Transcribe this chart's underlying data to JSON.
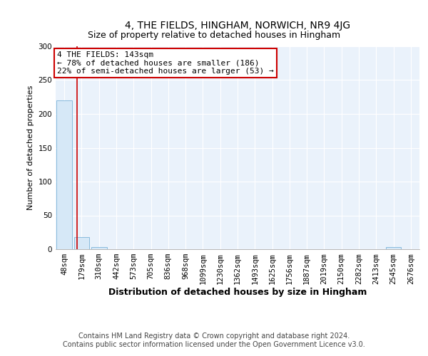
{
  "title": "4, THE FIELDS, HINGHAM, NORWICH, NR9 4JG",
  "subtitle": "Size of property relative to detached houses in Hingham",
  "xlabel": "Distribution of detached houses by size in Hingham",
  "ylabel": "Number of detached properties",
  "bar_labels": [
    "48sqm",
    "179sqm",
    "310sqm",
    "442sqm",
    "573sqm",
    "705sqm",
    "836sqm",
    "968sqm",
    "1099sqm",
    "1230sqm",
    "1362sqm",
    "1493sqm",
    "1625sqm",
    "1756sqm",
    "1887sqm",
    "2019sqm",
    "2150sqm",
    "2282sqm",
    "2413sqm",
    "2545sqm",
    "2676sqm"
  ],
  "bar_values": [
    220,
    18,
    3,
    0,
    0,
    0,
    0,
    0,
    0,
    0,
    0,
    0,
    0,
    0,
    0,
    0,
    0,
    0,
    0,
    3,
    0
  ],
  "bar_color": "#d6e8f7",
  "bar_edge_color": "#7bb3d8",
  "ylim": [
    0,
    300
  ],
  "yticks": [
    0,
    50,
    100,
    150,
    200,
    250,
    300
  ],
  "property_label": "4 THE FIELDS: 143sqm",
  "annotation_line1": "← 78% of detached houses are smaller (186)",
  "annotation_line2": "22% of semi-detached houses are larger (53) →",
  "annotation_color": "#cc0000",
  "vline_color": "#cc0000",
  "vline_x_bar_index": 0.72,
  "footer_line1": "Contains HM Land Registry data © Crown copyright and database right 2024.",
  "footer_line2": "Contains public sector information licensed under the Open Government Licence v3.0.",
  "background_color": "#eaf2fb",
  "title_fontsize": 10,
  "subtitle_fontsize": 9,
  "xlabel_fontsize": 9,
  "ylabel_fontsize": 8,
  "tick_fontsize": 7.5,
  "footer_fontsize": 7,
  "annotation_fontsize": 8
}
